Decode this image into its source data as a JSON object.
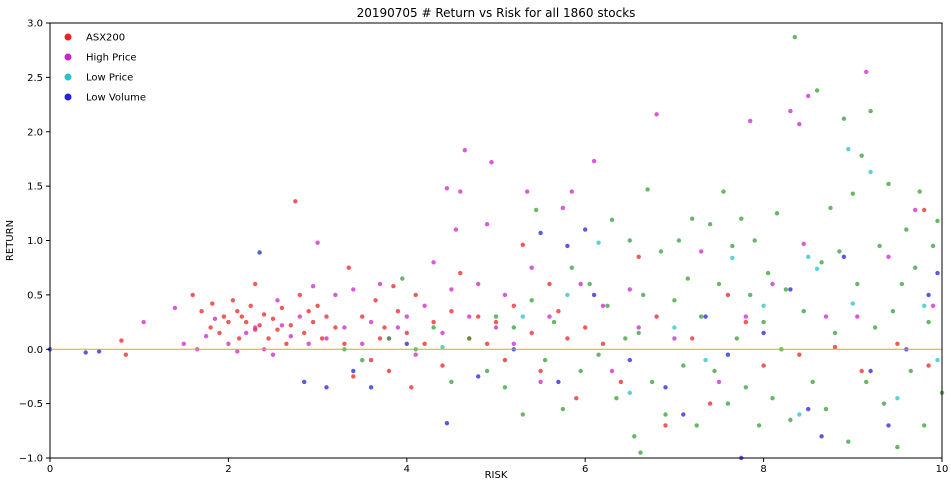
{
  "chart_data": {
    "type": "scatter",
    "title": "20190705 # Return vs Risk for all 1860 stocks",
    "xlabel": "RISK",
    "ylabel": "RETURN",
    "xlim": [
      0,
      10
    ],
    "ylim": [
      -1.0,
      3.0
    ],
    "xticks": [
      "0",
      "2",
      "4",
      "6",
      "8",
      "10"
    ],
    "yticks": [
      "−1.0",
      "−0.5",
      "0.0",
      "0.5",
      "1.0",
      "1.5",
      "2.0",
      "2.5",
      "3.0"
    ],
    "grid": false,
    "legend_position": "top-left",
    "reference_line": {
      "y": 0,
      "color": "#d4b000"
    },
    "series": [
      {
        "name": "ASX200",
        "color": "#ee2222",
        "points": [
          [
            0.8,
            0.08
          ],
          [
            0.85,
            -0.05
          ],
          [
            1.6,
            0.5
          ],
          [
            1.7,
            0.35
          ],
          [
            1.8,
            0.2
          ],
          [
            1.82,
            0.42
          ],
          [
            1.9,
            0.15
          ],
          [
            1.95,
            0.3
          ],
          [
            2.0,
            0.25
          ],
          [
            2.05,
            0.45
          ],
          [
            2.1,
            0.35
          ],
          [
            2.12,
            0.1
          ],
          [
            2.15,
            0.3
          ],
          [
            2.2,
            0.25
          ],
          [
            2.25,
            0.4
          ],
          [
            2.3,
            0.18
          ],
          [
            2.3,
            0.6
          ],
          [
            2.35,
            0.22
          ],
          [
            2.4,
            0.32
          ],
          [
            2.45,
            0.1
          ],
          [
            2.5,
            0.28
          ],
          [
            2.55,
            0.18
          ],
          [
            2.6,
            0.38
          ],
          [
            2.65,
            0.05
          ],
          [
            2.7,
            0.22
          ],
          [
            2.75,
            1.36
          ],
          [
            2.8,
            0.5
          ],
          [
            2.85,
            0.15
          ],
          [
            2.9,
            0.35
          ],
          [
            2.95,
            0.25
          ],
          [
            3.0,
            0.4
          ],
          [
            3.05,
            0.1
          ],
          [
            3.1,
            0.3
          ],
          [
            3.2,
            0.2
          ],
          [
            3.3,
            0.05
          ],
          [
            3.35,
            0.75
          ],
          [
            3.4,
            -0.25
          ],
          [
            3.5,
            0.3
          ],
          [
            3.6,
            -0.1
          ],
          [
            3.65,
            0.45
          ],
          [
            3.7,
            0.1
          ],
          [
            3.75,
            0.2
          ],
          [
            3.8,
            -0.2
          ],
          [
            3.85,
            0.58
          ],
          [
            3.9,
            0.35
          ],
          [
            4.0,
            0.15
          ],
          [
            4.05,
            -0.35
          ],
          [
            4.1,
            0.5
          ],
          [
            4.2,
            0.05
          ],
          [
            4.3,
            0.25
          ],
          [
            4.4,
            -0.15
          ],
          [
            4.5,
            0.35
          ],
          [
            4.6,
            0.7
          ],
          [
            4.7,
            0.1
          ],
          [
            4.8,
            0.3
          ],
          [
            4.9,
            0.05
          ],
          [
            5.0,
            0.25
          ],
          [
            5.1,
            -0.1
          ],
          [
            5.2,
            0.4
          ],
          [
            5.3,
            0.96
          ],
          [
            5.4,
            0.15
          ],
          [
            5.5,
            -0.2
          ],
          [
            5.6,
            0.6
          ],
          [
            5.7,
            0.35
          ],
          [
            5.8,
            0.1
          ],
          [
            5.9,
            -0.45
          ],
          [
            6.0,
            0.2
          ],
          [
            6.2,
            0.05
          ],
          [
            6.4,
            -0.3
          ],
          [
            6.6,
            0.85
          ],
          [
            6.8,
            0.3
          ],
          [
            6.9,
            -0.7
          ],
          [
            7.2,
            0.1
          ],
          [
            7.4,
            -0.5
          ],
          [
            7.6,
            0.5
          ],
          [
            7.8,
            0.25
          ],
          [
            8.0,
            -0.15
          ],
          [
            8.4,
            -0.05
          ],
          [
            8.8,
            0.02
          ],
          [
            9.1,
            -0.2
          ],
          [
            9.5,
            0.05
          ],
          [
            9.8,
            1.28
          ],
          [
            9.85,
            -0.15
          ]
        ]
      },
      {
        "name": "High Price",
        "color": "#cc22cc",
        "points": [
          [
            1.05,
            0.25
          ],
          [
            1.4,
            0.38
          ],
          [
            1.5,
            0.05
          ],
          [
            1.65,
            0.0
          ],
          [
            1.75,
            0.12
          ],
          [
            1.85,
            0.28
          ],
          [
            2.0,
            0.05
          ],
          [
            2.1,
            -0.02
          ],
          [
            2.2,
            0.15
          ],
          [
            2.3,
            0.2
          ],
          [
            2.4,
            0.0
          ],
          [
            2.5,
            -0.05
          ],
          [
            2.55,
            0.45
          ],
          [
            2.6,
            0.22
          ],
          [
            2.7,
            0.12
          ],
          [
            2.8,
            0.3
          ],
          [
            2.9,
            0.05
          ],
          [
            2.95,
            0.58
          ],
          [
            3.0,
            0.98
          ],
          [
            3.1,
            0.1
          ],
          [
            3.2,
            0.5
          ],
          [
            3.3,
            0.2
          ],
          [
            3.4,
            0.55
          ],
          [
            3.5,
            0.05
          ],
          [
            3.6,
            0.25
          ],
          [
            3.7,
            0.6
          ],
          [
            3.8,
            0.1
          ],
          [
            3.9,
            0.2
          ],
          [
            4.0,
            0.3
          ],
          [
            4.1,
            -0.05
          ],
          [
            4.2,
            0.4
          ],
          [
            4.3,
            0.8
          ],
          [
            4.4,
            0.15
          ],
          [
            4.45,
            1.48
          ],
          [
            4.5,
            0.55
          ],
          [
            4.55,
            1.1
          ],
          [
            4.6,
            1.45
          ],
          [
            4.65,
            1.83
          ],
          [
            4.7,
            0.3
          ],
          [
            4.8,
            0.6
          ],
          [
            4.9,
            1.15
          ],
          [
            4.95,
            1.72
          ],
          [
            5.0,
            0.2
          ],
          [
            5.1,
            0.5
          ],
          [
            5.2,
            0.05
          ],
          [
            5.35,
            1.45
          ],
          [
            5.4,
            0.75
          ],
          [
            5.5,
            -0.3
          ],
          [
            5.6,
            0.3
          ],
          [
            5.75,
            1.3
          ],
          [
            5.85,
            1.45
          ],
          [
            5.95,
            0.6
          ],
          [
            6.1,
            1.73
          ],
          [
            6.2,
            0.4
          ],
          [
            6.3,
            -0.2
          ],
          [
            6.5,
            0.55
          ],
          [
            6.6,
            0.2
          ],
          [
            6.8,
            2.16
          ],
          [
            7.0,
            0.1
          ],
          [
            7.3,
            0.9
          ],
          [
            7.5,
            -0.3
          ],
          [
            7.8,
            0.3
          ],
          [
            7.85,
            2.1
          ],
          [
            8.1,
            0.6
          ],
          [
            8.3,
            2.19
          ],
          [
            8.4,
            2.07
          ],
          [
            8.5,
            2.33
          ],
          [
            8.45,
            0.97
          ],
          [
            8.7,
            0.3
          ],
          [
            9.05,
            0.3
          ],
          [
            9.15,
            2.55
          ],
          [
            9.4,
            0.85
          ],
          [
            9.7,
            1.28
          ],
          [
            9.9,
            0.4
          ]
        ]
      },
      {
        "name": "Low Price",
        "color": "#22c4c4",
        "points": [
          [
            4.4,
            0.02
          ],
          [
            5.3,
            0.3
          ],
          [
            5.8,
            0.5
          ],
          [
            6.15,
            0.98
          ],
          [
            6.5,
            -0.4
          ],
          [
            7.0,
            0.2
          ],
          [
            7.35,
            -0.1
          ],
          [
            7.65,
            0.84
          ],
          [
            8.0,
            0.4
          ],
          [
            8.4,
            -0.6
          ],
          [
            8.5,
            0.85
          ],
          [
            8.6,
            0.74
          ],
          [
            8.95,
            1.84
          ],
          [
            9.0,
            0.42
          ],
          [
            9.2,
            1.63
          ],
          [
            9.5,
            -0.45
          ],
          [
            9.8,
            0.4
          ],
          [
            9.95,
            -0.1
          ]
        ]
      },
      {
        "name": "Low Volume",
        "color": "#2222dd",
        "points": [
          [
            0.0,
            0.0
          ],
          [
            0.4,
            -0.03
          ],
          [
            0.55,
            -0.02
          ],
          [
            2.35,
            0.89
          ],
          [
            2.85,
            -0.3
          ],
          [
            3.1,
            -0.35
          ],
          [
            3.4,
            -0.2
          ],
          [
            3.6,
            -0.35
          ],
          [
            4.0,
            0.05
          ],
          [
            4.45,
            -0.68
          ],
          [
            4.8,
            -0.25
          ],
          [
            5.2,
            0.0
          ],
          [
            5.5,
            1.07
          ],
          [
            5.7,
            -0.3
          ],
          [
            5.8,
            0.95
          ],
          [
            6.0,
            1.1
          ],
          [
            6.1,
            0.5
          ],
          [
            6.5,
            -0.1
          ],
          [
            6.9,
            -0.35
          ],
          [
            7.1,
            -0.6
          ],
          [
            7.35,
            0.3
          ],
          [
            7.6,
            -0.05
          ],
          [
            7.75,
            -1.0
          ],
          [
            8.0,
            0.15
          ],
          [
            8.3,
            0.55
          ],
          [
            8.5,
            -0.55
          ],
          [
            8.65,
            -0.8
          ],
          [
            8.9,
            0.85
          ],
          [
            9.2,
            -0.2
          ],
          [
            9.4,
            -0.7
          ],
          [
            9.6,
            0.0
          ],
          [
            9.85,
            0.5
          ],
          [
            9.95,
            0.7
          ]
        ]
      },
      {
        "name": "",
        "color": "#33a033",
        "points": [
          [
            3.3,
            0.0
          ],
          [
            3.5,
            -0.1
          ],
          [
            3.8,
            0.1
          ],
          [
            3.95,
            0.65
          ],
          [
            4.1,
            0.0
          ],
          [
            4.3,
            0.2
          ],
          [
            4.5,
            -0.3
          ],
          [
            4.7,
            0.1
          ],
          [
            4.9,
            -0.2
          ],
          [
            5.0,
            0.3
          ],
          [
            5.1,
            -0.35
          ],
          [
            5.2,
            0.2
          ],
          [
            5.3,
            -0.6
          ],
          [
            5.4,
            0.45
          ],
          [
            5.45,
            1.28
          ],
          [
            5.55,
            -0.1
          ],
          [
            5.65,
            0.25
          ],
          [
            5.75,
            -0.55
          ],
          [
            5.85,
            0.75
          ],
          [
            5.95,
            -0.2
          ],
          [
            6.05,
            0.6
          ],
          [
            6.15,
            -0.05
          ],
          [
            6.25,
            0.4
          ],
          [
            6.3,
            1.19
          ],
          [
            6.35,
            -0.45
          ],
          [
            6.45,
            0.1
          ],
          [
            6.5,
            1.0
          ],
          [
            6.55,
            -0.8
          ],
          [
            6.6,
            0.15
          ],
          [
            6.62,
            -0.95
          ],
          [
            6.65,
            0.5
          ],
          [
            6.7,
            1.47
          ],
          [
            6.75,
            -0.3
          ],
          [
            6.85,
            0.9
          ],
          [
            6.9,
            -0.6
          ],
          [
            7.0,
            0.45
          ],
          [
            7.05,
            1.0
          ],
          [
            7.1,
            -0.15
          ],
          [
            7.15,
            0.65
          ],
          [
            7.2,
            1.2
          ],
          [
            7.25,
            -0.7
          ],
          [
            7.3,
            0.3
          ],
          [
            7.4,
            1.15
          ],
          [
            7.45,
            -0.2
          ],
          [
            7.5,
            0.6
          ],
          [
            7.55,
            1.45
          ],
          [
            7.6,
            -0.5
          ],
          [
            7.65,
            0.95
          ],
          [
            7.7,
            0.1
          ],
          [
            7.75,
            1.2
          ],
          [
            7.8,
            -0.35
          ],
          [
            7.85,
            0.5
          ],
          [
            7.9,
            1.0
          ],
          [
            7.95,
            -0.7
          ],
          [
            8.0,
            0.25
          ],
          [
            8.05,
            0.7
          ],
          [
            8.1,
            -0.45
          ],
          [
            8.15,
            1.25
          ],
          [
            8.2,
            0.0
          ],
          [
            8.25,
            0.55
          ],
          [
            8.3,
            -0.65
          ],
          [
            8.35,
            2.87
          ],
          [
            8.45,
            0.35
          ],
          [
            8.55,
            -0.3
          ],
          [
            8.6,
            2.38
          ],
          [
            8.65,
            0.8
          ],
          [
            8.7,
            -0.55
          ],
          [
            8.75,
            1.3
          ],
          [
            8.8,
            0.15
          ],
          [
            8.85,
            0.9
          ],
          [
            8.9,
            2.12
          ],
          [
            8.95,
            -0.85
          ],
          [
            9.0,
            1.43
          ],
          [
            9.05,
            0.6
          ],
          [
            9.1,
            1.78
          ],
          [
            9.15,
            -0.3
          ],
          [
            9.2,
            2.19
          ],
          [
            9.25,
            0.2
          ],
          [
            9.3,
            0.95
          ],
          [
            9.35,
            -0.5
          ],
          [
            9.4,
            1.52
          ],
          [
            9.45,
            0.35
          ],
          [
            9.5,
            -0.9
          ],
          [
            9.55,
            0.6
          ],
          [
            9.6,
            1.1
          ],
          [
            9.65,
            -0.2
          ],
          [
            9.7,
            0.75
          ],
          [
            9.75,
            1.45
          ],
          [
            9.8,
            -0.7
          ],
          [
            9.85,
            0.25
          ],
          [
            9.9,
            0.95
          ],
          [
            9.95,
            1.18
          ],
          [
            10.0,
            -0.4
          ]
        ]
      }
    ]
  }
}
